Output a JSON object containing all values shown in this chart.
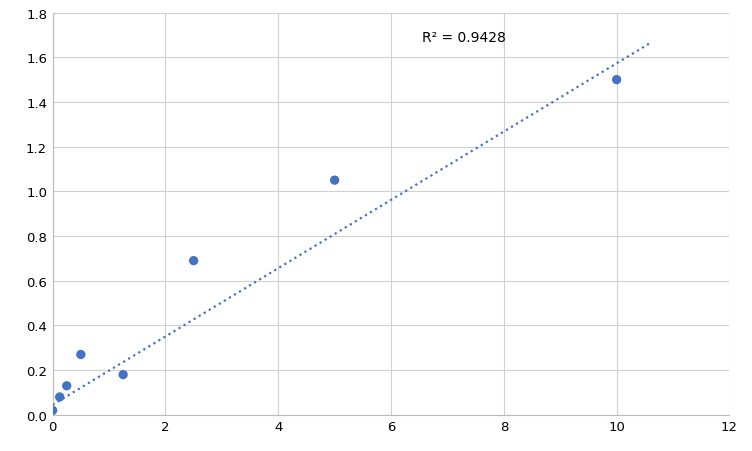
{
  "x_data": [
    0,
    0.125,
    0.25,
    0.5,
    1.25,
    2.5,
    5,
    10
  ],
  "y_data": [
    0.02,
    0.08,
    0.13,
    0.27,
    0.18,
    0.69,
    1.05,
    1.5
  ],
  "trendline_x": [
    0,
    10.6
  ],
  "r_squared": "R² = 0.9428",
  "r_squared_x": 6.55,
  "r_squared_y": 1.72,
  "xlim": [
    0,
    12
  ],
  "ylim": [
    0,
    1.8
  ],
  "xticks": [
    0,
    2,
    4,
    6,
    8,
    10,
    12
  ],
  "yticks": [
    0.0,
    0.2,
    0.4,
    0.6,
    0.8,
    1.0,
    1.2,
    1.4,
    1.6,
    1.8
  ],
  "dot_color": "#4472C4",
  "trendline_color": "#4472C4",
  "grid_color": "#D0D0D0",
  "background_color": "#FFFFFF",
  "marker_size": 45,
  "trendline_slope": 0.1528,
  "trendline_intercept": 0.045,
  "tick_fontsize": 9.5,
  "spine_color": "#BBBBBB"
}
